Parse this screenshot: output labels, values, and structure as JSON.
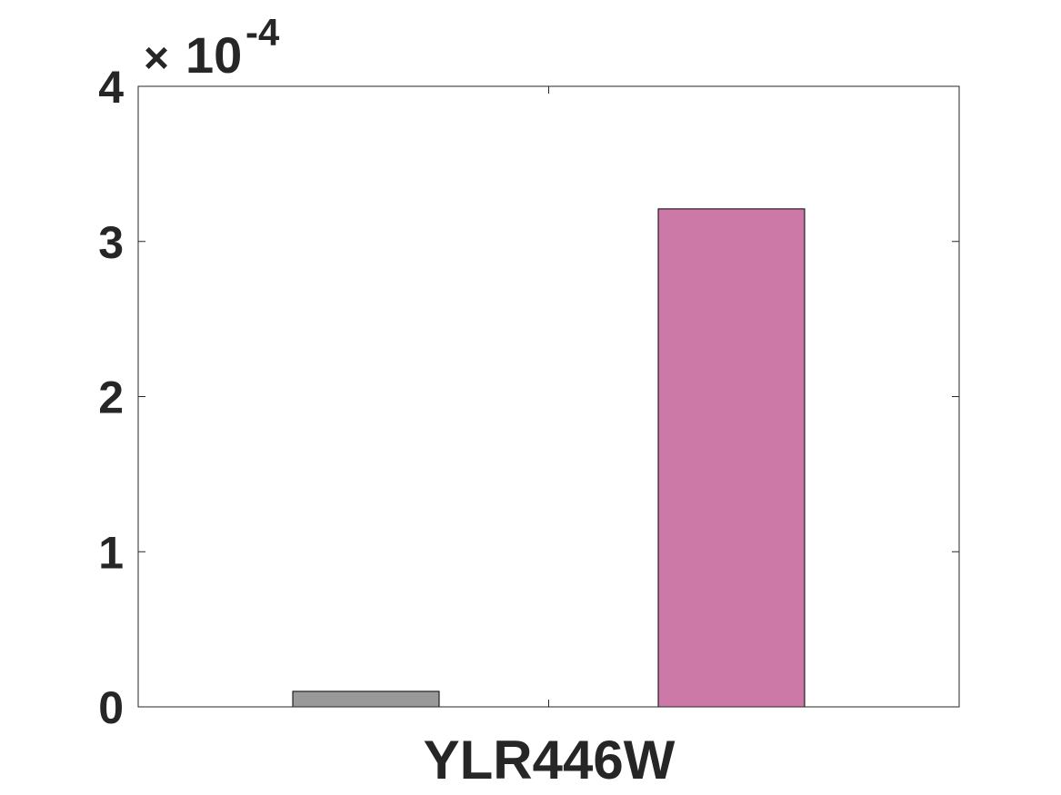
{
  "chart_data": {
    "type": "bar",
    "categories": [
      "YLR446W"
    ],
    "series": [
      {
        "values": [
          0.1
        ],
        "color": "#999999"
      },
      {
        "values": [
          3.21
        ],
        "color": "#CC79A7"
      }
    ],
    "ylim": [
      0,
      4
    ],
    "yticks": [
      "0",
      "1",
      "2",
      "3",
      "4"
    ],
    "y_exponent": {
      "times": "×",
      "base": "10",
      "power": "-4"
    },
    "xlabel": "",
    "ylabel": "",
    "grid": false,
    "box": true
  }
}
